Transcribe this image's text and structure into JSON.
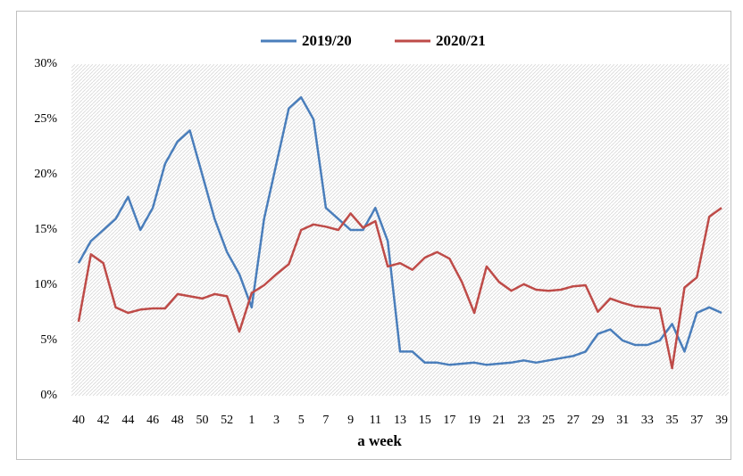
{
  "chart_data": {
    "type": "line",
    "x_label": "a week",
    "categories": [
      "40",
      null,
      "42",
      null,
      "44",
      null,
      "46",
      null,
      "48",
      null,
      "50",
      null,
      "52",
      null,
      "1",
      null,
      "3",
      null,
      "5",
      null,
      "7",
      null,
      "9",
      null,
      "11",
      null,
      "13",
      null,
      "15",
      null,
      "17",
      null,
      "19",
      null,
      "21",
      null,
      "23",
      null,
      "25",
      null,
      "27",
      null,
      "29",
      null,
      "31",
      null,
      "33",
      null,
      "35",
      null,
      "37",
      null,
      "39"
    ],
    "series": [
      {
        "name": "2019/20",
        "color": "#4a7ebb",
        "values": [
          12,
          14,
          15,
          16,
          18,
          15,
          17,
          21,
          23,
          24,
          20,
          16,
          13,
          11,
          8,
          16,
          21,
          26,
          27,
          25,
          17,
          16,
          15,
          15,
          17,
          14,
          4,
          4,
          3,
          3,
          2.8,
          2.9,
          3,
          2.8,
          2.9,
          3,
          3.2,
          3,
          3.2,
          3.4,
          3.6,
          4,
          5.6,
          6,
          5,
          4.6,
          4.6,
          5,
          6.5,
          4,
          7.5,
          8,
          7.5
        ]
      },
      {
        "name": "2020/21",
        "color": "#be4b48",
        "values": [
          6.7,
          12.8,
          12,
          8,
          7.5,
          7.8,
          7.9,
          7.9,
          9.2,
          9,
          8.8,
          9.2,
          9,
          5.8,
          9.3,
          10,
          11,
          11.9,
          15,
          15.5,
          15.3,
          15,
          16.5,
          15.2,
          15.8,
          11.7,
          12,
          11.4,
          12.5,
          13,
          12.4,
          10.3,
          7.5,
          11.7,
          10.3,
          9.5,
          10.1,
          9.6,
          9.5,
          9.6,
          9.9,
          10,
          7.6,
          8.8,
          8.4,
          8.1,
          8,
          7.9,
          2.5,
          9.8,
          10.7,
          16.2,
          17
        ]
      }
    ],
    "ylim": [
      0,
      30
    ],
    "yticks": [
      {
        "value": 0,
        "label": "0%"
      },
      {
        "value": 5,
        "label": "5%"
      },
      {
        "value": 10,
        "label": "10%"
      },
      {
        "value": 15,
        "label": "15%"
      },
      {
        "value": 20,
        "label": "20%"
      },
      {
        "value": 25,
        "label": "25%"
      },
      {
        "value": 30,
        "label": "30%"
      }
    ],
    "legend": "top"
  }
}
